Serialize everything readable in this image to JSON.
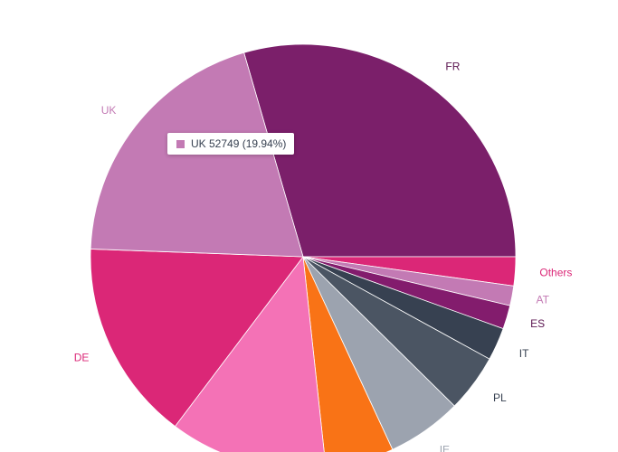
{
  "chart_data": {
    "type": "pie",
    "slices": [
      {
        "label": "FR",
        "percent": 29.5,
        "color": "#7b1f6a",
        "label_color": "#5b1550"
      },
      {
        "label": "Others",
        "percent": 2.2,
        "color": "#db2777",
        "label_color": "#db2777"
      },
      {
        "label": "AT",
        "percent": 1.5,
        "color": "#c37ab4",
        "label_color": "#c37ab4"
      },
      {
        "label": "ES",
        "percent": 1.8,
        "color": "#831c6d",
        "label_color": "#5b1550"
      },
      {
        "label": "IT",
        "percent": 2.5,
        "color": "#374151",
        "label_color": "#374151"
      },
      {
        "label": "PL",
        "percent": 4.4,
        "color": "#4b5563",
        "label_color": "#374151"
      },
      {
        "label": "IE",
        "percent": 5.7,
        "color": "#9ca3af",
        "label_color": "#9ca3af"
      },
      {
        "label": "",
        "percent": 5.2,
        "color": "#f97316",
        "label_color": "#f97316"
      },
      {
        "label": "",
        "percent": 12.0,
        "color": "#f472b6",
        "label_color": "#f472b6"
      },
      {
        "label": "DE",
        "percent": 15.3,
        "color": "#db2777",
        "label_color": "#db2777"
      },
      {
        "label": "UK",
        "percent": 19.94,
        "value": 52749,
        "color": "#c37ab4",
        "label_color": "#c37ab4"
      }
    ]
  },
  "tooltip": {
    "text": "UK 52749 (19.94%)",
    "color": "#c37ab4"
  }
}
